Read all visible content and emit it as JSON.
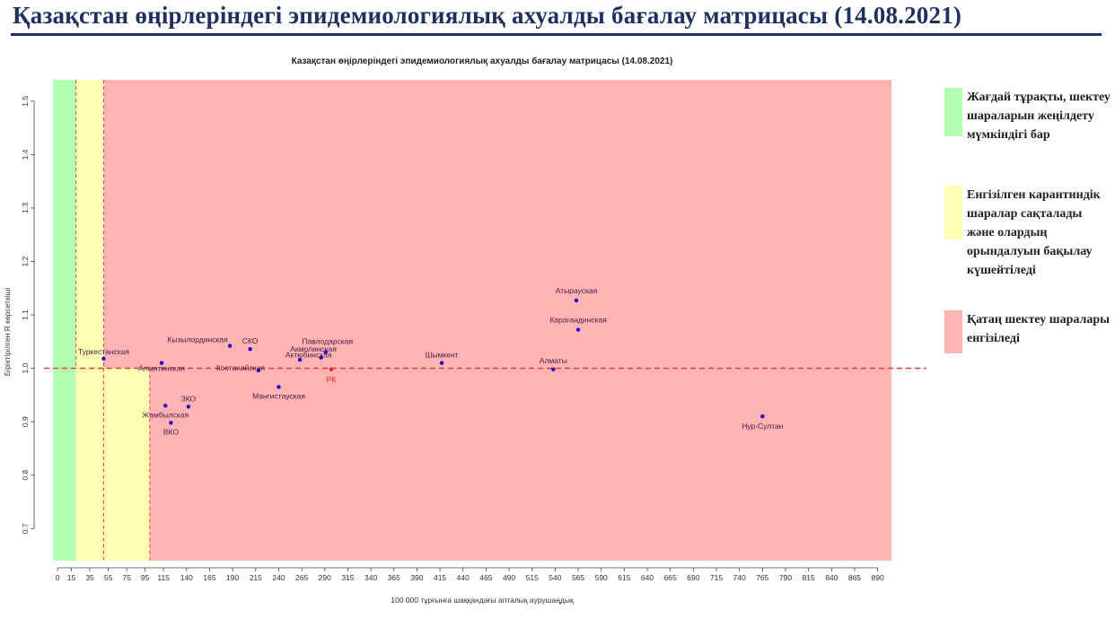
{
  "page": {
    "title": "Қазақстан өңірлеріндегі эпидемиологиялық ахуалды бағалау матрицасы  (14.08.2021)"
  },
  "legend": [
    {
      "text": "Жағдай тұрақты, шектеу шараларын жеңілдету мүмкіндігі бар",
      "color": "#b3ffb3"
    },
    {
      "text": "Енгізілген карантиндік шаралар сақталады және олардың орындалуын бақылау күшейтіледі",
      "color": "#ffffb3"
    },
    {
      "text": "Қатаң шектеу шаралары енгізіледі",
      "color": "#ffb3b3"
    }
  ],
  "chart_data": {
    "type": "scatter",
    "title": "Казақстан өңірлеріндегі эпидемиологиялық ахуалды бағалау матрицасы  (14.08.2021)",
    "xlabel": "100 000 тұрғынға шаққандағы апталық аурушаңдық",
    "ylabel": "Біріктірілген R көрсеткіші",
    "xlim": [
      -5,
      905
    ],
    "ylim": [
      0.64,
      1.54
    ],
    "x_ticks": [
      0,
      15,
      35,
      55,
      75,
      95,
      115,
      140,
      165,
      190,
      215,
      240,
      265,
      290,
      315,
      340,
      365,
      390,
      415,
      440,
      465,
      490,
      515,
      540,
      565,
      590,
      615,
      640,
      665,
      690,
      715,
      740,
      765,
      790,
      815,
      840,
      865,
      890
    ],
    "y_ticks": [
      0.7,
      0.8,
      0.9,
      1.0,
      1.1,
      1.2,
      1.3,
      1.4,
      1.5
    ],
    "zones": [
      {
        "x_from": -5,
        "x_to": 20,
        "y_from": 0.64,
        "y_to": 1.54,
        "color": "#b3ffb3"
      },
      {
        "x_from": 20,
        "x_to": 50,
        "y_from": 0.64,
        "y_to": 1.54,
        "color": "#ffffb3"
      },
      {
        "x_from": 50,
        "x_to": 100,
        "y_from": 0.64,
        "y_to": 1.0,
        "color": "#ffffb3"
      },
      {
        "x_from": 50,
        "x_to": 905,
        "y_from": 1.0,
        "y_to": 1.54,
        "color": "#ffb3b3"
      },
      {
        "x_from": 100,
        "x_to": 905,
        "y_from": 0.64,
        "y_to": 1.0,
        "color": "#ffb3b3"
      }
    ],
    "v_lines": [
      20,
      50,
      100
    ],
    "h_line": 1.0,
    "points": [
      {
        "label": "Туркестанская",
        "x": 50,
        "y": 1.018,
        "color": "#2200cc"
      },
      {
        "label": "Алматинская",
        "x": 113,
        "y": 1.01,
        "color": "#2200cc"
      },
      {
        "label": "Кызылординская",
        "x": 187,
        "y": 1.042,
        "color": "#2200cc"
      },
      {
        "label": "СКО",
        "x": 209,
        "y": 1.036,
        "color": "#2200cc"
      },
      {
        "label": "Костанайская",
        "x": 218,
        "y": 0.996,
        "color": "#2200cc"
      },
      {
        "label": "Акмолинская",
        "x": 263,
        "y": 1.016,
        "color": "#2200cc"
      },
      {
        "label": "Павлодарская",
        "x": 291,
        "y": 1.03,
        "color": "#2200cc"
      },
      {
        "label": "Актюбинская",
        "x": 286,
        "y": 1.02,
        "color": "#2200cc"
      },
      {
        "label": "РК",
        "x": 297,
        "y": 0.998,
        "color": "#ee2222"
      },
      {
        "label": "Мангистауская",
        "x": 240,
        "y": 0.965,
        "color": "#2200cc"
      },
      {
        "label": "ЗКО",
        "x": 142,
        "y": 0.928,
        "color": "#2200cc"
      },
      {
        "label": "Жамбылская",
        "x": 117,
        "y": 0.93,
        "color": "#2200cc"
      },
      {
        "label": "ВКО",
        "x": 123,
        "y": 0.898,
        "color": "#2200cc"
      },
      {
        "label": "Шымкент",
        "x": 417,
        "y": 1.01,
        "color": "#2200cc"
      },
      {
        "label": "Алматы",
        "x": 538,
        "y": 0.998,
        "color": "#2200cc"
      },
      {
        "label": "Атырауская",
        "x": 563,
        "y": 1.127,
        "color": "#2200cc"
      },
      {
        "label": "Карагандинская",
        "x": 565,
        "y": 1.072,
        "color": "#2200cc"
      },
      {
        "label": "Нур-Султан",
        "x": 765,
        "y": 0.91,
        "color": "#2200cc"
      }
    ]
  }
}
